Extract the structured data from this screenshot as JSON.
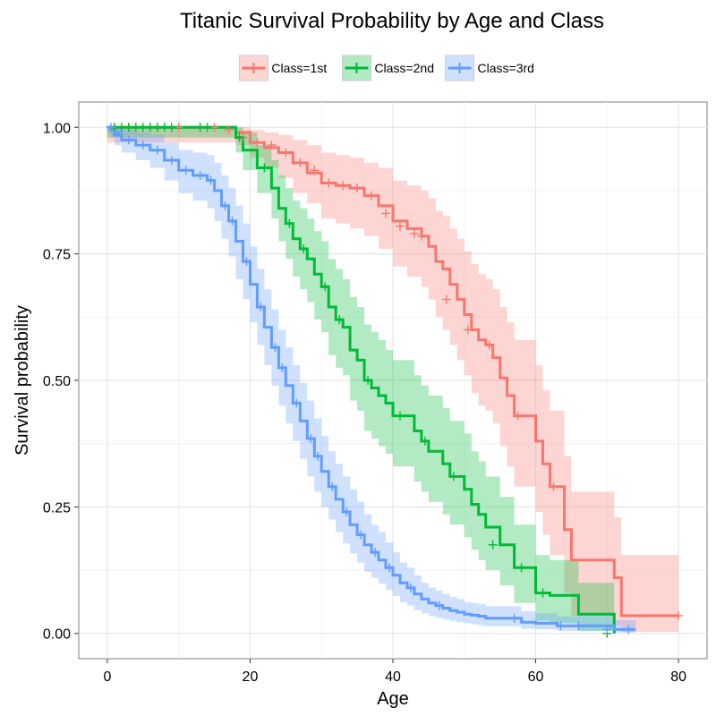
{
  "chart_data": {
    "type": "line",
    "title": "Titanic Survival Probability by Age and Class",
    "xlabel": "Age",
    "ylabel": "Survival probability",
    "xlim": [
      -4,
      84
    ],
    "ylim": [
      -0.05,
      1.05
    ],
    "x_ticks": [
      0,
      20,
      40,
      60,
      80
    ],
    "x_tick_labels": [
      "0",
      "20",
      "40",
      "60",
      "80"
    ],
    "y_ticks": [
      0,
      0.25,
      0.5,
      0.75,
      1.0
    ],
    "y_tick_labels": [
      "0.00",
      "0.25",
      "0.50",
      "0.75",
      "1.00"
    ],
    "grid": true,
    "legend_position": "top",
    "step": true,
    "series": [
      {
        "name": "Class=1st",
        "color": "#F8766D",
        "band_color": "#F8766D",
        "x": [
          0,
          16,
          18,
          20,
          22,
          24,
          26,
          28,
          30,
          32,
          34,
          36,
          38,
          40,
          42,
          44,
          45,
          46,
          47,
          48,
          49,
          50,
          51,
          52,
          53,
          54,
          55,
          56,
          57,
          58,
          60,
          61,
          62,
          63,
          64,
          65,
          70,
          71,
          72,
          80
        ],
        "y": [
          1.0,
          1.0,
          0.99,
          0.97,
          0.96,
          0.95,
          0.93,
          0.91,
          0.89,
          0.885,
          0.88,
          0.865,
          0.845,
          0.815,
          0.8,
          0.785,
          0.765,
          0.735,
          0.72,
          0.69,
          0.66,
          0.63,
          0.6,
          0.58,
          0.57,
          0.545,
          0.505,
          0.47,
          0.43,
          0.43,
          0.38,
          0.335,
          0.29,
          0.29,
          0.205,
          0.145,
          0.145,
          0.11,
          0.035,
          0.035
        ],
        "lower": [
          0.97,
          0.97,
          0.965,
          0.94,
          0.92,
          0.9,
          0.87,
          0.85,
          0.82,
          0.81,
          0.8,
          0.785,
          0.76,
          0.725,
          0.705,
          0.685,
          0.66,
          0.625,
          0.6,
          0.57,
          0.54,
          0.51,
          0.475,
          0.45,
          0.44,
          0.415,
          0.37,
          0.33,
          0.29,
          0.29,
          0.24,
          0.195,
          0.155,
          0.155,
          0.08,
          0.035,
          0.035,
          0.015,
          0.003,
          0.003
        ],
        "upper": [
          1.0,
          1.0,
          1.0,
          0.995,
          0.99,
          0.985,
          0.975,
          0.965,
          0.95,
          0.945,
          0.94,
          0.93,
          0.92,
          0.895,
          0.885,
          0.875,
          0.86,
          0.835,
          0.825,
          0.8,
          0.78,
          0.755,
          0.73,
          0.71,
          0.7,
          0.68,
          0.645,
          0.615,
          0.58,
          0.58,
          0.53,
          0.48,
          0.44,
          0.44,
          0.35,
          0.28,
          0.28,
          0.23,
          0.155,
          0.155
        ],
        "censor": [
          [
            1,
            1.0
          ],
          [
            3,
            1.0
          ],
          [
            6,
            1.0
          ],
          [
            10,
            1.0
          ],
          [
            13,
            1.0
          ],
          [
            15,
            1.0
          ],
          [
            17,
            0.995
          ],
          [
            19,
            0.98
          ],
          [
            21,
            0.97
          ],
          [
            23,
            0.965
          ],
          [
            25,
            0.95
          ],
          [
            27,
            0.93
          ],
          [
            29,
            0.915
          ],
          [
            31,
            0.89
          ],
          [
            33,
            0.885
          ],
          [
            35,
            0.88
          ],
          [
            37,
            0.865
          ],
          [
            39,
            0.83
          ],
          [
            41,
            0.805
          ],
          [
            43,
            0.79
          ],
          [
            44,
            0.785
          ],
          [
            47.5,
            0.66
          ],
          [
            50.5,
            0.6
          ],
          [
            53.5,
            0.57
          ],
          [
            57.5,
            0.43
          ],
          [
            62.5,
            0.29
          ],
          [
            80,
            0.035
          ]
        ]
      },
      {
        "name": "Class=2nd",
        "color": "#00BA38",
        "band_color": "#00BA38",
        "x": [
          0,
          17,
          18,
          19,
          21,
          23,
          24,
          25,
          26,
          27,
          28,
          29,
          30,
          31,
          32,
          33,
          34,
          35,
          36,
          37,
          38,
          39,
          40,
          42,
          43,
          44,
          45,
          47,
          48,
          50,
          51,
          52,
          53,
          55,
          57,
          60,
          62,
          63,
          66,
          70,
          71
        ],
        "y": [
          1.0,
          1.0,
          0.98,
          0.955,
          0.92,
          0.88,
          0.84,
          0.81,
          0.78,
          0.76,
          0.74,
          0.71,
          0.685,
          0.645,
          0.62,
          0.605,
          0.56,
          0.54,
          0.5,
          0.485,
          0.47,
          0.455,
          0.43,
          0.43,
          0.4,
          0.38,
          0.36,
          0.335,
          0.31,
          0.285,
          0.255,
          0.235,
          0.21,
          0.175,
          0.13,
          0.08,
          0.075,
          0.075,
          0.038,
          0.038,
          0.0
        ],
        "lower": [
          0.98,
          0.98,
          0.95,
          0.915,
          0.87,
          0.82,
          0.775,
          0.74,
          0.705,
          0.68,
          0.655,
          0.62,
          0.595,
          0.55,
          0.525,
          0.51,
          0.46,
          0.44,
          0.4,
          0.385,
          0.37,
          0.355,
          0.33,
          0.33,
          0.3,
          0.28,
          0.26,
          0.235,
          0.215,
          0.19,
          0.165,
          0.145,
          0.125,
          0.095,
          0.06,
          0.025,
          0.02,
          0.02,
          0.005,
          0.005,
          0.0
        ],
        "upper": [
          1.0,
          1.0,
          1.0,
          0.99,
          0.965,
          0.935,
          0.905,
          0.88,
          0.855,
          0.84,
          0.82,
          0.795,
          0.775,
          0.74,
          0.72,
          0.7,
          0.665,
          0.645,
          0.61,
          0.595,
          0.58,
          0.56,
          0.54,
          0.54,
          0.51,
          0.49,
          0.47,
          0.445,
          0.42,
          0.395,
          0.36,
          0.34,
          0.31,
          0.27,
          0.215,
          0.155,
          0.145,
          0.145,
          0.1,
          0.1,
          0.02
        ],
        "censor": [
          [
            1,
            1.0
          ],
          [
            2,
            1.0
          ],
          [
            3,
            1.0
          ],
          [
            4,
            1.0
          ],
          [
            5,
            1.0
          ],
          [
            6,
            1.0
          ],
          [
            7,
            1.0
          ],
          [
            8,
            1.0
          ],
          [
            9,
            1.0
          ],
          [
            13,
            1.0
          ],
          [
            14,
            1.0
          ],
          [
            18.5,
            0.98
          ],
          [
            22,
            0.92
          ],
          [
            25.5,
            0.81
          ],
          [
            27.5,
            0.76
          ],
          [
            30.5,
            0.685
          ],
          [
            32.5,
            0.62
          ],
          [
            36.5,
            0.5
          ],
          [
            41,
            0.43
          ],
          [
            44.5,
            0.38
          ],
          [
            48.5,
            0.31
          ],
          [
            54,
            0.175
          ],
          [
            58,
            0.13
          ],
          [
            61,
            0.08
          ],
          [
            70,
            0.0
          ]
        ]
      },
      {
        "name": "Class=3rd",
        "color": "#619CFF",
        "band_color": "#619CFF",
        "x": [
          0,
          0.5,
          1,
          2,
          4,
          6,
          8,
          10,
          12,
          14,
          15,
          16,
          17,
          18,
          19,
          20,
          21,
          22,
          23,
          24,
          25,
          26,
          27,
          28,
          29,
          30,
          31,
          32,
          33,
          34,
          35,
          36,
          37,
          38,
          39,
          40,
          41,
          42,
          43,
          44,
          45,
          46,
          47,
          48,
          49,
          50,
          51,
          52,
          53,
          55,
          58,
          60,
          63,
          65,
          71,
          74
        ],
        "y": [
          1.0,
          0.995,
          0.985,
          0.975,
          0.965,
          0.955,
          0.935,
          0.915,
          0.905,
          0.895,
          0.875,
          0.845,
          0.815,
          0.775,
          0.735,
          0.69,
          0.645,
          0.605,
          0.565,
          0.525,
          0.49,
          0.455,
          0.42,
          0.385,
          0.35,
          0.32,
          0.29,
          0.265,
          0.24,
          0.215,
          0.195,
          0.175,
          0.16,
          0.145,
          0.13,
          0.115,
          0.1,
          0.09,
          0.078,
          0.068,
          0.06,
          0.055,
          0.05,
          0.045,
          0.042,
          0.038,
          0.036,
          0.034,
          0.03,
          0.03,
          0.022,
          0.02,
          0.015,
          0.015,
          0.008,
          0.008
        ],
        "lower": [
          0.99,
          0.98,
          0.965,
          0.95,
          0.935,
          0.92,
          0.895,
          0.87,
          0.855,
          0.84,
          0.815,
          0.78,
          0.745,
          0.7,
          0.66,
          0.615,
          0.57,
          0.53,
          0.49,
          0.45,
          0.415,
          0.38,
          0.345,
          0.31,
          0.28,
          0.25,
          0.225,
          0.2,
          0.178,
          0.158,
          0.14,
          0.122,
          0.11,
          0.098,
          0.086,
          0.074,
          0.062,
          0.055,
          0.046,
          0.04,
          0.034,
          0.031,
          0.028,
          0.025,
          0.022,
          0.02,
          0.018,
          0.016,
          0.014,
          0.014,
          0.009,
          0.008,
          0.005,
          0.005,
          0.002,
          0.002
        ],
        "upper": [
          1.0,
          1.0,
          1.0,
          0.995,
          0.99,
          0.985,
          0.97,
          0.955,
          0.95,
          0.945,
          0.93,
          0.905,
          0.88,
          0.845,
          0.81,
          0.765,
          0.72,
          0.68,
          0.64,
          0.6,
          0.565,
          0.53,
          0.495,
          0.46,
          0.425,
          0.39,
          0.36,
          0.335,
          0.31,
          0.285,
          0.26,
          0.235,
          0.215,
          0.2,
          0.18,
          0.16,
          0.14,
          0.13,
          0.115,
          0.1,
          0.09,
          0.085,
          0.078,
          0.072,
          0.068,
          0.062,
          0.06,
          0.058,
          0.054,
          0.054,
          0.044,
          0.04,
          0.034,
          0.034,
          0.026,
          0.026
        ],
        "censor": [
          [
            0.5,
            1.0
          ],
          [
            1.5,
            0.99
          ],
          [
            3,
            0.975
          ],
          [
            5,
            0.965
          ],
          [
            7,
            0.955
          ],
          [
            9,
            0.935
          ],
          [
            11,
            0.915
          ],
          [
            13,
            0.905
          ],
          [
            14.5,
            0.895
          ],
          [
            16.5,
            0.845
          ],
          [
            17.5,
            0.815
          ],
          [
            19.5,
            0.735
          ],
          [
            21.5,
            0.645
          ],
          [
            23.5,
            0.565
          ],
          [
            24.5,
            0.525
          ],
          [
            26.5,
            0.455
          ],
          [
            28.5,
            0.385
          ],
          [
            29.5,
            0.35
          ],
          [
            31.5,
            0.29
          ],
          [
            33.5,
            0.24
          ],
          [
            35.5,
            0.195
          ],
          [
            37.5,
            0.16
          ],
          [
            39.5,
            0.13
          ],
          [
            42.5,
            0.09
          ],
          [
            46.5,
            0.055
          ],
          [
            57,
            0.03
          ],
          [
            63.5,
            0.015
          ],
          [
            66,
            0.015
          ],
          [
            70,
            0.008
          ],
          [
            73,
            0.008
          ]
        ]
      }
    ]
  }
}
